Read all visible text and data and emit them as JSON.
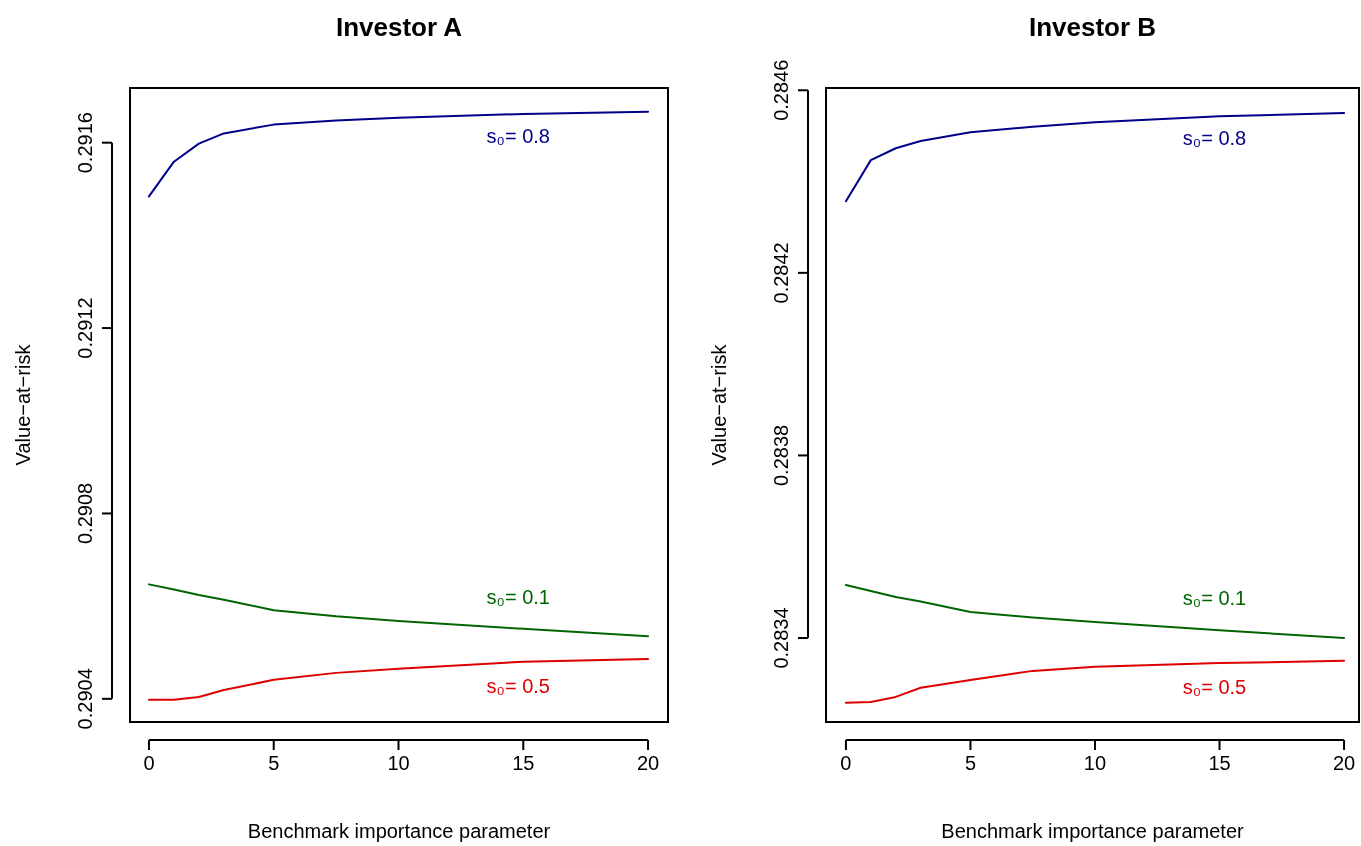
{
  "chart_data": [
    {
      "type": "line",
      "title": "Investor A",
      "xlabel": "Benchmark importance parameter",
      "ylabel": "Value−at−risk",
      "x": [
        0,
        1,
        2,
        3,
        5,
        7.5,
        10,
        15,
        20
      ],
      "xlim": [
        -0.76,
        20.8
      ],
      "xticks": [
        0,
        5,
        10,
        15,
        20
      ],
      "ylim": [
        0.29035,
        0.291718
      ],
      "yticks": [
        0.2904,
        0.2908,
        0.2912,
        0.2916
      ],
      "grid": false,
      "series": [
        {
          "color": "#00008b",
          "values": [
            0.291484,
            0.291559,
            0.291598,
            0.29162,
            0.291639,
            0.291648,
            0.291654,
            0.291662,
            0.291667
          ]
        },
        {
          "color": "#006400",
          "values": [
            0.290647,
            0.290636,
            0.290624,
            0.290614,
            0.290591,
            0.290578,
            0.290568,
            0.290551,
            0.290535
          ]
        },
        {
          "color": "#dd0000",
          "values": [
            0.290398,
            0.290398,
            0.290404,
            0.290419,
            0.290441,
            0.290456,
            0.290465,
            0.29048,
            0.290486
          ]
        }
      ],
      "annotations": [
        "s₀= 0.8",
        "s₀= 0.1",
        "s₀= 0.5"
      ]
    },
    {
      "type": "line",
      "title": "Investor B",
      "xlabel": "Benchmark importance parameter",
      "ylabel": "Value−at−risk",
      "x": [
        0,
        1,
        2,
        3,
        5,
        7.5,
        10,
        15,
        20
      ],
      "xlim": [
        -0.8,
        20.6
      ],
      "xticks": [
        0,
        5,
        10,
        15,
        20
      ],
      "ylim": [
        0.283216,
        0.284605
      ],
      "yticks": [
        0.2834,
        0.2838,
        0.2842,
        0.2846
      ],
      "grid": false,
      "series": [
        {
          "color": "#00008b",
          "values": [
            0.284357,
            0.284447,
            0.284473,
            0.284489,
            0.284508,
            0.28452,
            0.28453,
            0.284543,
            0.28455
          ]
        },
        {
          "color": "#006400",
          "values": [
            0.283516,
            0.283503,
            0.28349,
            0.28348,
            0.283457,
            0.283445,
            0.283435,
            0.283417,
            0.2834
          ]
        },
        {
          "color": "#dd0000",
          "values": [
            0.283258,
            0.28326,
            0.283271,
            0.283291,
            0.283308,
            0.283328,
            0.283337,
            0.283345,
            0.28335
          ]
        }
      ],
      "annotations": [
        "s₀= 0.8",
        "s₀= 0.1",
        "s₀= 0.5"
      ]
    }
  ]
}
